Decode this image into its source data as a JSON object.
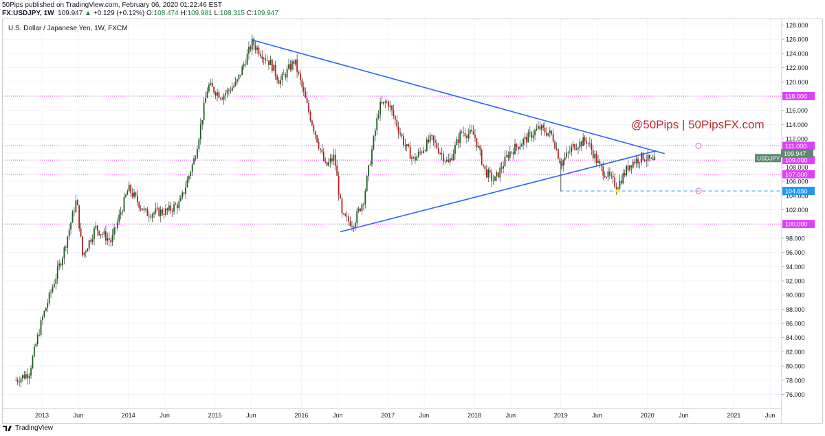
{
  "header": {
    "publisher_line": "50Pips published on TradingView.com, February 06, 2020 01:22:46 EST",
    "symbol": "FX:USDJPY, 1W",
    "last": "109.947",
    "change_arrow": "▲",
    "change": "+0.129 (+0.12%)",
    "o_label": "O:",
    "o": "108.474",
    "h_label": "H:",
    "h": "109.981",
    "l_label": "L:",
    "l": "108.315",
    "c_label": "C:",
    "c": "109.947"
  },
  "footer": {
    "brand": "TradingView"
  },
  "colors": {
    "up": "#26a69a",
    "down": "#ef5350",
    "candle_up": "#1b5e20",
    "candle_down": "#b71c1c",
    "trendline": "#2962ff",
    "level": "#e040fb",
    "dashed": "#2196f3",
    "watermark": "#c62828"
  },
  "chart_data": {
    "type": "candlestick",
    "title": "U.S. Dollar / Japanese Yen, 1W, FXCM",
    "watermark": "@50Pips | 50PipsFX.com",
    "ylim": [
      74.8,
      128.6
    ],
    "xlim": [
      2012.615,
      2021.64
    ],
    "y_ticks": [
      "128.000",
      "126.000",
      "124.000",
      "122.000",
      "120.000",
      "118.000",
      "116.000",
      "114.000",
      "112.000",
      "110.000",
      "108.000",
      "106.000",
      "104.000",
      "102.000",
      "100.000",
      "98.000",
      "96.000",
      "94.000",
      "92.000",
      "90.000",
      "88.000",
      "86.000",
      "84.000",
      "82.000",
      "80.000",
      "78.000",
      "76.000"
    ],
    "x_ticks": [
      {
        "label": "2013",
        "t": 2013.0
      },
      {
        "label": "Jun",
        "t": 2013.42
      },
      {
        "label": "2014",
        "t": 2014.0
      },
      {
        "label": "Jun",
        "t": 2014.42
      },
      {
        "label": "2015",
        "t": 2015.0
      },
      {
        "label": "Jun",
        "t": 2015.42
      },
      {
        "label": "2016",
        "t": 2016.0
      },
      {
        "label": "Jun",
        "t": 2016.42
      },
      {
        "label": "2017",
        "t": 2017.0
      },
      {
        "label": "Jun",
        "t": 2017.42
      },
      {
        "label": "2018",
        "t": 2018.0
      },
      {
        "label": "Jun",
        "t": 2018.42
      },
      {
        "label": "2019",
        "t": 2019.0
      },
      {
        "label": "Jun",
        "t": 2019.42
      },
      {
        "label": "2020",
        "t": 2020.0
      },
      {
        "label": "Jun",
        "t": 2020.42
      },
      {
        "label": "2021",
        "t": 2021.0
      },
      {
        "label": "Jun",
        "t": 2021.42
      }
    ],
    "levels": [
      {
        "label": "118.000",
        "value": 118.0
      },
      {
        "label": "111.000",
        "value": 111.0
      },
      {
        "label": "109.000",
        "value": 109.0
      },
      {
        "label": "107.000",
        "value": 107.0
      },
      {
        "label": "100.000",
        "value": 100.0
      }
    ],
    "dashed_level": {
      "label": "104.650",
      "value": 104.65,
      "from_t": 2018.99
    },
    "price_label": {
      "symbol": "USDJPY",
      "value": 109.947,
      "text": "109.947"
    },
    "trendlines": [
      {
        "from": {
          "t": 2015.43,
          "v": 125.9
        },
        "to": {
          "t": 2020.2,
          "v": 109.9
        }
      },
      {
        "from": {
          "t": 2016.45,
          "v": 98.9
        },
        "to": {
          "t": 2020.1,
          "v": 110.3
        }
      }
    ],
    "swing_points": [
      {
        "t": 2012.7,
        "v": 78.0
      },
      {
        "t": 2012.85,
        "v": 79.0
      },
      {
        "t": 2013.0,
        "v": 86.5
      },
      {
        "t": 2013.25,
        "v": 96.0
      },
      {
        "t": 2013.4,
        "v": 103.5
      },
      {
        "t": 2013.47,
        "v": 95.5
      },
      {
        "t": 2013.62,
        "v": 99.5
      },
      {
        "t": 2013.8,
        "v": 97.5
      },
      {
        "t": 2014.0,
        "v": 105.0
      },
      {
        "t": 2014.2,
        "v": 101.5
      },
      {
        "t": 2014.45,
        "v": 101.8
      },
      {
        "t": 2014.6,
        "v": 103.0
      },
      {
        "t": 2014.77,
        "v": 109.5
      },
      {
        "t": 2014.92,
        "v": 119.5
      },
      {
        "t": 2015.08,
        "v": 118.0
      },
      {
        "t": 2015.25,
        "v": 119.8
      },
      {
        "t": 2015.43,
        "v": 125.5
      },
      {
        "t": 2015.65,
        "v": 122.5
      },
      {
        "t": 2015.75,
        "v": 120.0
      },
      {
        "t": 2015.92,
        "v": 123.0
      },
      {
        "t": 2016.08,
        "v": 116.0
      },
      {
        "t": 2016.28,
        "v": 108.0
      },
      {
        "t": 2016.38,
        "v": 109.5
      },
      {
        "t": 2016.47,
        "v": 101.0
      },
      {
        "t": 2016.6,
        "v": 100.0
      },
      {
        "t": 2016.72,
        "v": 103.5
      },
      {
        "t": 2016.9,
        "v": 116.5
      },
      {
        "t": 2017.0,
        "v": 117.2
      },
      {
        "t": 2017.2,
        "v": 111.0
      },
      {
        "t": 2017.3,
        "v": 109.0
      },
      {
        "t": 2017.5,
        "v": 112.0
      },
      {
        "t": 2017.7,
        "v": 108.5
      },
      {
        "t": 2017.85,
        "v": 113.0
      },
      {
        "t": 2018.0,
        "v": 112.5
      },
      {
        "t": 2018.12,
        "v": 107.5
      },
      {
        "t": 2018.23,
        "v": 106.0
      },
      {
        "t": 2018.4,
        "v": 110.0
      },
      {
        "t": 2018.55,
        "v": 111.5
      },
      {
        "t": 2018.75,
        "v": 113.5
      },
      {
        "t": 2018.9,
        "v": 112.5
      },
      {
        "t": 2019.0,
        "v": 108.5
      },
      {
        "t": 2019.15,
        "v": 111.0
      },
      {
        "t": 2019.3,
        "v": 111.8
      },
      {
        "t": 2019.45,
        "v": 108.0
      },
      {
        "t": 2019.6,
        "v": 106.0
      },
      {
        "t": 2019.65,
        "v": 105.3
      },
      {
        "t": 2019.8,
        "v": 108.5
      },
      {
        "t": 2019.95,
        "v": 109.5
      },
      {
        "t": 2020.08,
        "v": 108.5
      },
      {
        "t": 2020.1,
        "v": 109.95
      }
    ]
  }
}
